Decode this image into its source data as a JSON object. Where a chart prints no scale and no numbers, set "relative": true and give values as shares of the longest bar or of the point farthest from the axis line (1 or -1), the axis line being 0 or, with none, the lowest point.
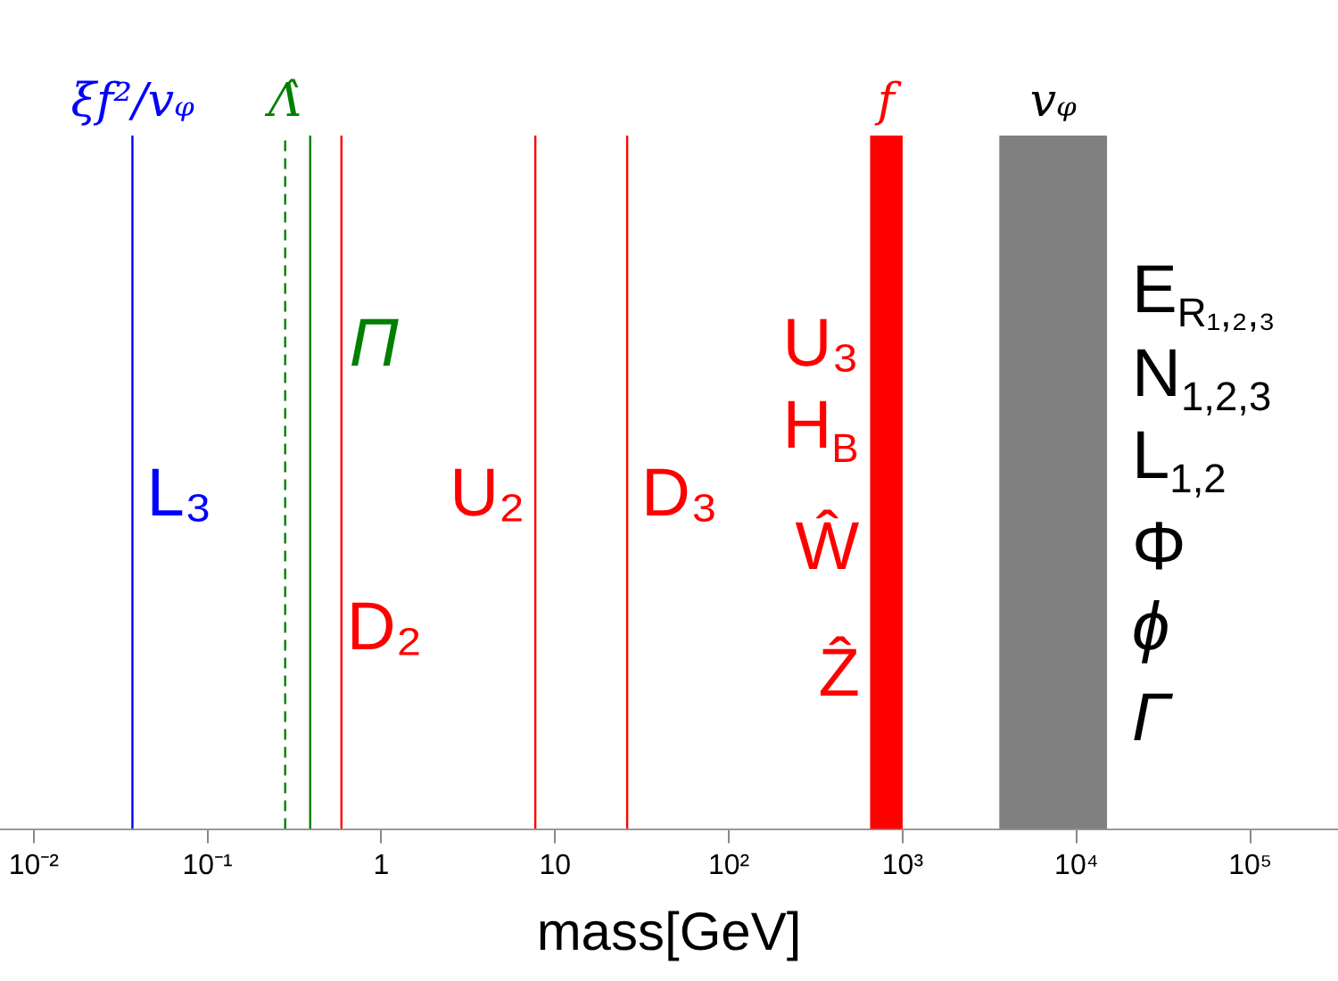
{
  "chart_data": {
    "type": "line",
    "relative": true,
    "xlabel": "mass[GeV]",
    "log": "x",
    "xlim": [
      0.0064,
      320000
    ],
    "xticks": [
      {
        "value": 0.01,
        "label": "10⁻²"
      },
      {
        "value": 0.1,
        "label": "10⁻¹"
      },
      1,
      10,
      {
        "value": 100,
        "label": "10²"
      },
      {
        "value": 1000,
        "label": "10³"
      },
      {
        "value": 10000,
        "label": "10⁴"
      },
      {
        "value": 100000,
        "label": "10⁵"
      }
    ],
    "marker": "none",
    "series": [
      {
        "name": "ξf²/vᵩ",
        "color": "#0000ff",
        "x": [
          0.037,
          0.037
        ],
        "values": [
          0,
          1
        ]
      },
      {
        "name": "Λ̂",
        "color": "#008000",
        "x": [
          0.28,
          0.28
        ],
        "values": [
          0,
          1
        ],
        "line_style": "dashed"
      },
      {
        "color": "#008000",
        "x": [
          0.39,
          0.39
        ],
        "values": [
          0,
          1
        ]
      },
      {
        "color": "#ff0000",
        "x": [
          0.59,
          0.59
        ],
        "values": [
          0,
          1
        ]
      },
      {
        "color": "#ff0000",
        "x": [
          7.7,
          7.7
        ],
        "values": [
          0,
          1
        ]
      },
      {
        "color": "#ff0000",
        "x": [
          26,
          26
        ],
        "values": [
          0,
          1
        ]
      }
    ],
    "bands": [
      {
        "axis": "x",
        "from": 650,
        "to": 1000,
        "label": "f",
        "color": "#ff0000"
      },
      {
        "axis": "x",
        "from": 3600,
        "to": 15000,
        "label": "vᵩ",
        "color": "#808080"
      }
    ],
    "annotations": [
      {
        "text": "L₃",
        "x": 0.037
      },
      {
        "text": "Π",
        "x": 0.39
      },
      {
        "text": "D₂",
        "x": 0.59
      },
      {
        "text": "U₂",
        "x": 7.7
      },
      {
        "text": "D₃",
        "x": 26
      },
      {
        "text": "U₃",
        "x": 650
      },
      {
        "text": "H$_{B}$",
        "x": 650
      },
      {
        "text": "Ŵ",
        "x": 650
      },
      {
        "text": "Ẑ",
        "x": 650
      },
      {
        "text": "E$_{R₁,₂,₃}$",
        "x": 15000
      },
      {
        "text": "N$_{1,2,3}$",
        "x": 15000
      },
      {
        "text": "L$_{1,2}$",
        "x": 15000
      },
      {
        "text": "Φ",
        "x": 15000
      },
      {
        "text": "ϕ",
        "x": 15000
      },
      {
        "text": "Γ",
        "x": 15000
      }
    ]
  }
}
